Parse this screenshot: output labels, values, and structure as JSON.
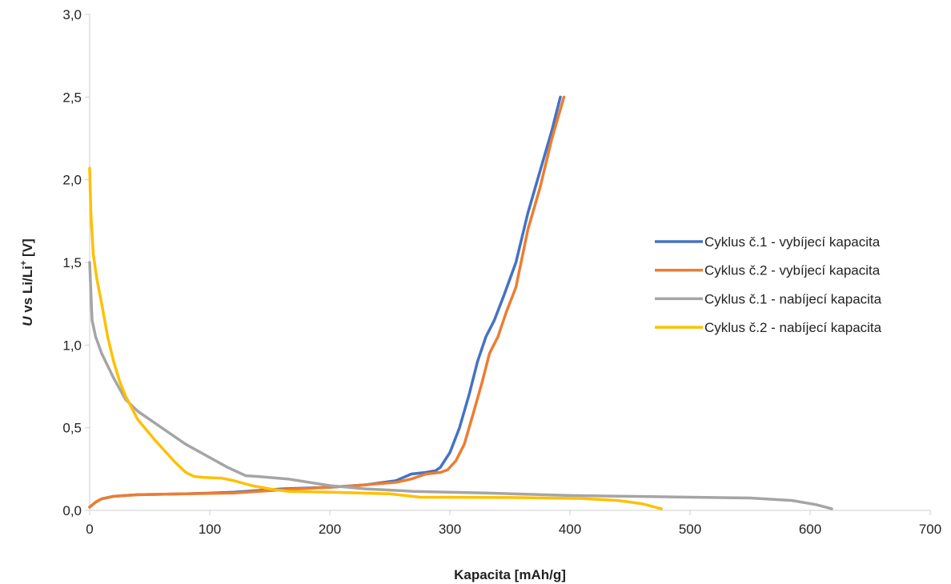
{
  "chart_data": {
    "type": "line",
    "xlabel": "Kapacita [mAh/g]",
    "ylabel": {
      "italic": "U",
      "main": " vs Li/Li",
      "sup": "+",
      "unit": " [V]"
    },
    "xlim": [
      0,
      700
    ],
    "ylim": [
      0,
      3.0
    ],
    "x_ticks": [
      0,
      100,
      200,
      300,
      400,
      500,
      600,
      700
    ],
    "x_tick_labels": [
      "0",
      "100",
      "200",
      "300",
      "400",
      "500",
      "600",
      "700"
    ],
    "y_ticks": [
      0,
      0.5,
      1.0,
      1.5,
      2.0,
      2.5,
      3.0
    ],
    "y_tick_labels": [
      "0,0",
      "0,5",
      "1,0",
      "1,5",
      "2,0",
      "2,5",
      "3,0"
    ],
    "grid": false,
    "legend_position": "right",
    "series": [
      {
        "name": "Cyklus č.1 - vybíjecí kapacita",
        "color": "#4472C4",
        "points": [
          [
            0,
            0.02
          ],
          [
            5,
            0.05
          ],
          [
            10,
            0.07
          ],
          [
            20,
            0.085
          ],
          [
            40,
            0.095
          ],
          [
            80,
            0.1
          ],
          [
            120,
            0.11
          ],
          [
            160,
            0.13
          ],
          [
            200,
            0.14
          ],
          [
            230,
            0.155
          ],
          [
            255,
            0.18
          ],
          [
            268,
            0.22
          ],
          [
            280,
            0.23
          ],
          [
            288,
            0.24
          ],
          [
            292,
            0.26
          ],
          [
            300,
            0.35
          ],
          [
            308,
            0.5
          ],
          [
            316,
            0.7
          ],
          [
            323,
            0.9
          ],
          [
            330,
            1.05
          ],
          [
            337,
            1.15
          ],
          [
            345,
            1.3
          ],
          [
            355,
            1.5
          ],
          [
            365,
            1.8
          ],
          [
            375,
            2.05
          ],
          [
            385,
            2.3
          ],
          [
            392,
            2.5
          ]
        ]
      },
      {
        "name": "Cyklus č.2 - vybíjecí kapacita",
        "color": "#ED7D31",
        "points": [
          [
            0,
            0.02
          ],
          [
            5,
            0.05
          ],
          [
            10,
            0.07
          ],
          [
            20,
            0.085
          ],
          [
            40,
            0.095
          ],
          [
            80,
            0.1
          ],
          [
            120,
            0.105
          ],
          [
            160,
            0.125
          ],
          [
            200,
            0.14
          ],
          [
            230,
            0.155
          ],
          [
            255,
            0.17
          ],
          [
            268,
            0.19
          ],
          [
            280,
            0.22
          ],
          [
            292,
            0.23
          ],
          [
            298,
            0.245
          ],
          [
            305,
            0.3
          ],
          [
            312,
            0.4
          ],
          [
            320,
            0.6
          ],
          [
            327,
            0.78
          ],
          [
            333,
            0.95
          ],
          [
            340,
            1.05
          ],
          [
            347,
            1.2
          ],
          [
            355,
            1.35
          ],
          [
            365,
            1.7
          ],
          [
            375,
            1.95
          ],
          [
            385,
            2.25
          ],
          [
            395,
            2.5
          ]
        ]
      },
      {
        "name": "Cyklus č.1 - nabíjecí kapacita",
        "color": "#A5A5A5",
        "points": [
          [
            0,
            1.5
          ],
          [
            2,
            1.15
          ],
          [
            5,
            1.05
          ],
          [
            10,
            0.95
          ],
          [
            20,
            0.8
          ],
          [
            30,
            0.67
          ],
          [
            40,
            0.6
          ],
          [
            60,
            0.5
          ],
          [
            80,
            0.4
          ],
          [
            100,
            0.32
          ],
          [
            115,
            0.26
          ],
          [
            130,
            0.21
          ],
          [
            140,
            0.205
          ],
          [
            165,
            0.19
          ],
          [
            200,
            0.15
          ],
          [
            230,
            0.13
          ],
          [
            270,
            0.115
          ],
          [
            330,
            0.105
          ],
          [
            400,
            0.09
          ],
          [
            450,
            0.085
          ],
          [
            500,
            0.08
          ],
          [
            550,
            0.075
          ],
          [
            585,
            0.06
          ],
          [
            605,
            0.035
          ],
          [
            618,
            0.01
          ]
        ]
      },
      {
        "name": "Cyklus č.2 - nabíjecí kapacita",
        "color": "#FFC000",
        "points": [
          [
            0,
            2.07
          ],
          [
            1,
            1.8
          ],
          [
            3,
            1.55
          ],
          [
            6,
            1.4
          ],
          [
            10,
            1.25
          ],
          [
            15,
            1.05
          ],
          [
            20,
            0.9
          ],
          [
            25,
            0.78
          ],
          [
            30,
            0.69
          ],
          [
            40,
            0.55
          ],
          [
            55,
            0.42
          ],
          [
            70,
            0.3
          ],
          [
            80,
            0.23
          ],
          [
            87,
            0.205
          ],
          [
            95,
            0.2
          ],
          [
            110,
            0.195
          ],
          [
            120,
            0.18
          ],
          [
            135,
            0.15
          ],
          [
            150,
            0.13
          ],
          [
            165,
            0.115
          ],
          [
            200,
            0.11
          ],
          [
            250,
            0.1
          ],
          [
            275,
            0.08
          ],
          [
            350,
            0.078
          ],
          [
            410,
            0.072
          ],
          [
            440,
            0.06
          ],
          [
            460,
            0.04
          ],
          [
            476,
            0.01
          ]
        ]
      }
    ]
  }
}
